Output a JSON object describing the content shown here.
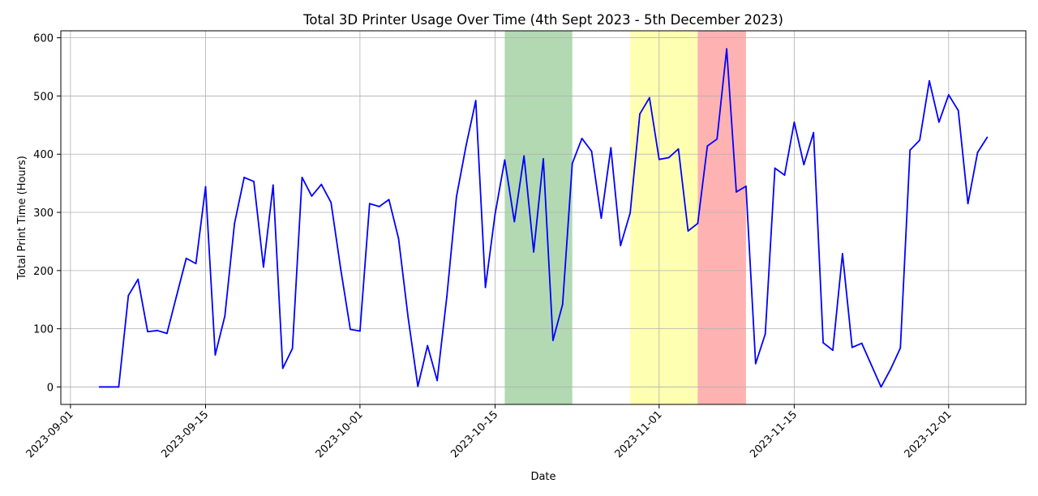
{
  "chart_data": {
    "type": "line",
    "title": "Total 3D Printer Usage Over Time (4th Sept 2023 - 5th December 2023)",
    "xlabel": "Date",
    "ylabel": "Total Print Time (Hours)",
    "x_range": [
      "2023-08-31",
      "2023-12-09"
    ],
    "ylim": [
      -30,
      612
    ],
    "x_ticks": [
      "2023-09-01",
      "2023-09-15",
      "2023-10-01",
      "2023-10-15",
      "2023-11-01",
      "2023-11-15",
      "2023-12-01"
    ],
    "y_ticks": [
      0,
      100,
      200,
      300,
      400,
      500,
      600
    ],
    "grid": true,
    "line_color": "#0000ff",
    "shaded_periods": [
      {
        "start": "2023-10-16",
        "end": "2023-10-23",
        "color": "#008000",
        "opacity": 0.3
      },
      {
        "start": "2023-10-29",
        "end": "2023-11-05",
        "color": "#ffff00",
        "opacity": 0.3
      },
      {
        "start": "2023-11-05",
        "end": "2023-11-10",
        "color": "#ff0000",
        "opacity": 0.3
      }
    ],
    "series": [
      {
        "x": [
          "2023-09-04",
          "2023-09-05",
          "2023-09-06",
          "2023-09-07",
          "2023-09-08",
          "2023-09-09",
          "2023-09-10",
          "2023-09-11",
          "2023-09-12",
          "2023-09-13",
          "2023-09-14",
          "2023-09-15",
          "2023-09-16",
          "2023-09-17",
          "2023-09-18",
          "2023-09-19",
          "2023-09-20",
          "2023-09-21",
          "2023-09-22",
          "2023-09-23",
          "2023-09-24",
          "2023-09-25",
          "2023-09-26",
          "2023-09-27",
          "2023-09-28",
          "2023-09-29",
          "2023-09-30",
          "2023-10-01",
          "2023-10-02",
          "2023-10-03",
          "2023-10-04",
          "2023-10-05",
          "2023-10-06",
          "2023-10-07",
          "2023-10-08",
          "2023-10-09",
          "2023-10-10",
          "2023-10-11",
          "2023-10-12",
          "2023-10-13",
          "2023-10-14",
          "2023-10-15",
          "2023-10-16",
          "2023-10-17",
          "2023-10-18",
          "2023-10-19",
          "2023-10-20",
          "2023-10-21",
          "2023-10-22",
          "2023-10-23",
          "2023-10-24",
          "2023-10-25",
          "2023-10-26",
          "2023-10-27",
          "2023-10-28",
          "2023-10-29",
          "2023-10-30",
          "2023-10-31",
          "2023-11-01",
          "2023-11-02",
          "2023-11-03",
          "2023-11-04",
          "2023-11-05",
          "2023-11-06",
          "2023-11-07",
          "2023-11-08",
          "2023-11-09",
          "2023-11-10",
          "2023-11-11",
          "2023-11-12",
          "2023-11-13",
          "2023-11-14",
          "2023-11-15",
          "2023-11-16",
          "2023-11-17",
          "2023-11-18",
          "2023-11-19",
          "2023-11-20",
          "2023-11-21",
          "2023-11-22",
          "2023-11-24",
          "2023-11-25",
          "2023-11-26",
          "2023-11-27",
          "2023-11-28",
          "2023-11-29",
          "2023-11-30",
          "2023-12-01",
          "2023-12-02",
          "2023-12-03",
          "2023-12-04",
          "2023-12-05"
        ],
        "values": [
          0,
          0,
          0,
          157,
          185,
          95,
          97,
          92,
          157,
          221,
          212,
          344,
          55,
          122,
          281,
          360,
          353,
          206,
          347,
          32,
          66,
          360,
          328,
          348,
          317,
          203,
          99,
          96,
          315,
          310,
          322,
          255,
          118,
          1,
          71,
          11,
          155,
          327,
          415,
          492,
          171,
          297,
          390,
          284,
          397,
          232,
          392,
          80,
          142,
          384,
          427,
          405,
          290,
          411,
          243,
          299,
          469,
          497,
          391,
          394,
          409,
          268,
          281,
          414,
          426,
          581,
          335,
          345,
          40,
          91,
          376,
          364,
          455,
          382,
          437,
          76,
          63,
          229,
          68,
          75,
          0,
          31,
          67,
          407,
          424,
          526,
          455,
          502,
          475,
          315,
          403,
          429
        ]
      }
    ]
  }
}
